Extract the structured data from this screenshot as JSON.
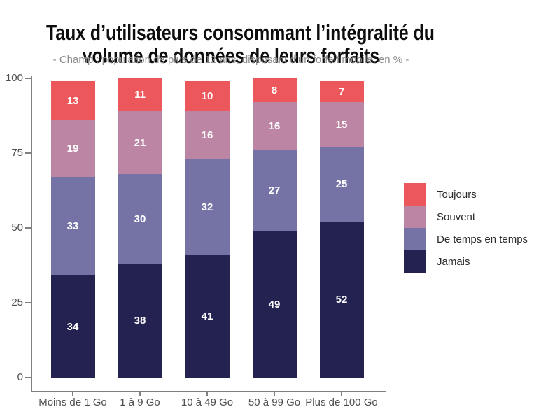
{
  "title_lines": [
    "Taux d’utilisateurs consommant l’intégralité du",
    "volume de données de leurs forfaits"
  ],
  "subtitle": "- Champ : population de plus de 12 ans, disposant d’un forfait mobile, en % -",
  "chart_data": {
    "type": "bar",
    "stacked": true,
    "title": "Taux d’utilisateurs consommant l’intégralité du volume de données de leurs forfaits",
    "subtitle": "- Champ : population de plus de 12 ans, disposant d’un forfait mobile, en % -",
    "categories": [
      "Moins de 1 Go",
      "1 à 9 Go",
      "10 à 49 Go",
      "50 à 99 Go",
      "Plus de 100 Go"
    ],
    "series": [
      {
        "name": "Jamais",
        "color": "#242250",
        "values": [
          34,
          38,
          41,
          49,
          52
        ]
      },
      {
        "name": "De temps en temps",
        "color": "#7573A6",
        "values": [
          33,
          30,
          32,
          27,
          25
        ]
      },
      {
        "name": "Souvent",
        "color": "#BC85A3",
        "values": [
          19,
          21,
          16,
          16,
          15
        ]
      },
      {
        "name": "Toujours",
        "color": "#EC575B",
        "values": [
          13,
          11,
          10,
          8,
          7
        ]
      }
    ],
    "legend": [
      "Toujours",
      "Souvent",
      "De temps en temps",
      "Jamais"
    ],
    "legend_position": "right",
    "value_labels": true,
    "ylabel": "",
    "xlabel": "",
    "ylim": [
      0,
      100
    ],
    "yticks": [
      0,
      25,
      50,
      75,
      100
    ],
    "grid": false,
    "colors": {
      "axis": "#808080",
      "tick_label": "#4D4D4D",
      "subtitle_text": "#8C8C8C",
      "value_label": "#FFFFFF",
      "legend_text": "#2B2B2B",
      "title_text": "#0D0D0D"
    }
  }
}
